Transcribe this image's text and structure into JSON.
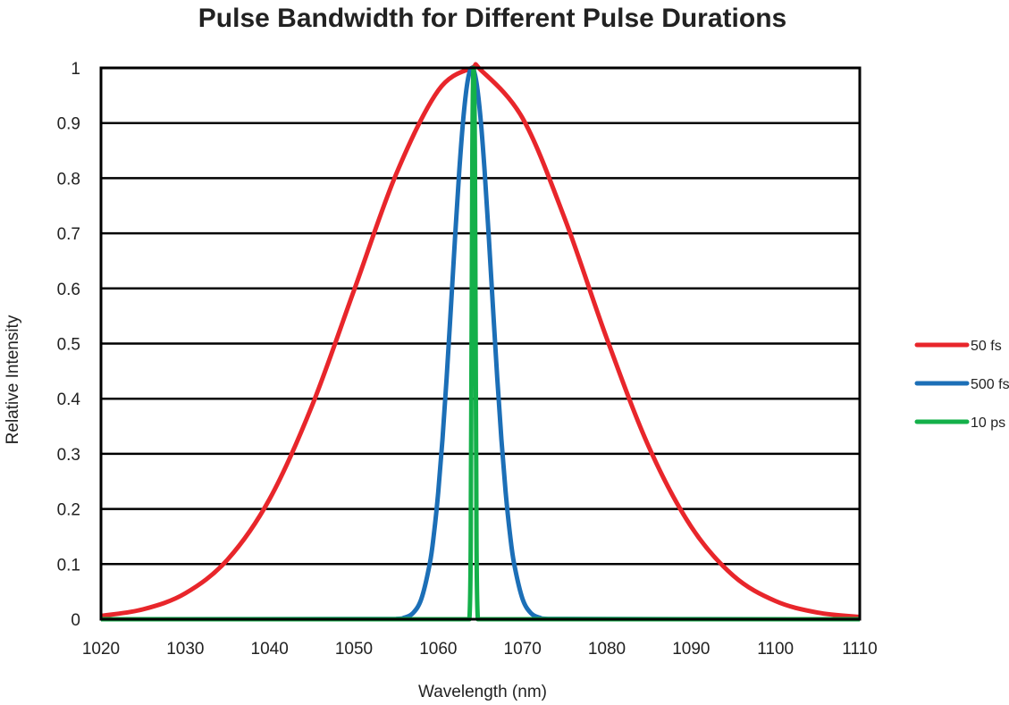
{
  "chart_data": {
    "type": "line",
    "title": "Pulse Bandwidth for Different Pulse Durations",
    "xlabel": "Wavelength (nm)",
    "ylabel": "Relative Intensity",
    "xlim": [
      1020,
      1110
    ],
    "ylim": [
      0,
      1
    ],
    "xticks": [
      1020,
      1030,
      1040,
      1050,
      1060,
      1070,
      1080,
      1090,
      1100,
      1110
    ],
    "yticks": [
      0,
      0.1,
      0.2,
      0.3,
      0.4,
      0.5,
      0.6,
      0.7,
      0.8,
      0.9,
      1
    ],
    "ytick_labels": [
      "0",
      "0.1",
      "0.2",
      "0.3",
      "0.4",
      "0.5",
      "0.6",
      "0.7",
      "0.8",
      "0.9",
      "1"
    ],
    "grid": "horizontal",
    "legend_position": "right",
    "series": [
      {
        "name": "50 fs",
        "color": "#e8262b",
        "x": [
          1020,
          1025,
          1030,
          1035,
          1040,
          1045,
          1050,
          1055,
          1060,
          1064,
          1065,
          1070,
          1075,
          1080,
          1085,
          1090,
          1095,
          1100,
          1105,
          1110
        ],
        "y": [
          0.006,
          0.018,
          0.047,
          0.108,
          0.218,
          0.386,
          0.596,
          0.807,
          0.959,
          1,
          0.997,
          0.909,
          0.727,
          0.509,
          0.312,
          0.168,
          0.079,
          0.033,
          0.012,
          0.004
        ]
      },
      {
        "name": "500 fs",
        "color": "#1c6fb7",
        "x": [
          1020,
          1055,
          1056,
          1057,
          1058,
          1059,
          1059.5,
          1060,
          1060.5,
          1061,
          1061.5,
          1062,
          1062.5,
          1063,
          1063.5,
          1064,
          1064.5,
          1065,
          1065.5,
          1066,
          1066.5,
          1067,
          1067.5,
          1068,
          1068.5,
          1069,
          1070,
          1071,
          1072,
          1073,
          1110
        ],
        "y": [
          0,
          0.0006,
          0.003,
          0.011,
          0.037,
          0.101,
          0.156,
          0.23,
          0.325,
          0.438,
          0.564,
          0.693,
          0.814,
          0.912,
          0.977,
          1,
          0.977,
          0.912,
          0.814,
          0.693,
          0.564,
          0.438,
          0.325,
          0.23,
          0.156,
          0.101,
          0.037,
          0.011,
          0.003,
          0.0006,
          0
        ]
      },
      {
        "name": "10 ps",
        "color": "#14b04a",
        "x": [
          1020,
          1063.7,
          1063.9,
          1064.05,
          1064.2,
          1064.35,
          1064.5,
          1064.7,
          1110
        ],
        "y": [
          0,
          0,
          0.3,
          0.85,
          1,
          0.85,
          0.3,
          0,
          0
        ]
      }
    ]
  }
}
